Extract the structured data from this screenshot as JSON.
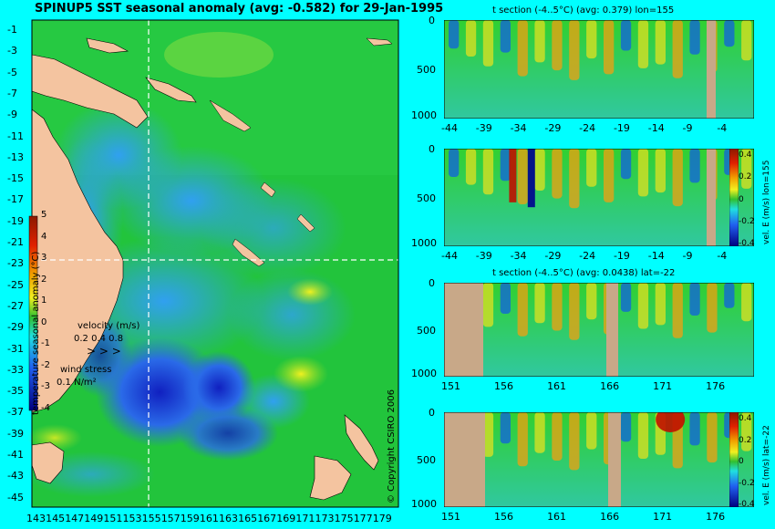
{
  "map": {
    "title": "SPINUP5 SST seasonal anomaly (avg: -0.582) for 29-Jan-1995",
    "lat_ticks": [
      "-1",
      "-3",
      "-5",
      "-7",
      "-9",
      "-11",
      "-13",
      "-15",
      "-17",
      "-19",
      "-21",
      "-23",
      "-25",
      "-27",
      "-29",
      "-31",
      "-33",
      "-35",
      "-37",
      "-39",
      "-41",
      "-43",
      "-45"
    ],
    "lon_ticks": [
      "143",
      "145",
      "147",
      "149",
      "151",
      "153",
      "155",
      "157",
      "159",
      "161",
      "163",
      "165",
      "167",
      "169",
      "171",
      "173",
      "175",
      "177",
      "179"
    ],
    "colorbar_ticks": [
      "5",
      "4",
      "3",
      "2",
      "1",
      "0",
      "-1",
      "-2",
      "-3",
      "-4"
    ],
    "colorbar_label": "temperature seasonal anomaly (°C)",
    "velocity_label": "velocity (m/s)",
    "velocity_scale": "0.2 0.4 0.8",
    "wind_label": "wind stress",
    "wind_scale": "0.1 N/m²",
    "crosshair": {
      "lon": 155,
      "lat": -22
    },
    "colors": {
      "land": "#f4c4a0",
      "water_base": "#20c840",
      "anomaly_neg": "#1040e0",
      "anomaly_pos": "#f0e020",
      "cross": "#ffffff"
    }
  },
  "panels": [
    {
      "id": "p1",
      "title": "t section (-4..5°C) (avg: 0.379) lon=155",
      "y_ticks": [
        "0",
        "500",
        "1000"
      ],
      "x_ticks": [
        "-44",
        "-39",
        "-34",
        "-29",
        "-24",
        "-19",
        "-14",
        "-9",
        "-4"
      ],
      "side_label": "",
      "cbar_ticks": []
    },
    {
      "id": "p2",
      "title": "",
      "y_ticks": [
        "0",
        "500",
        "1000"
      ],
      "x_ticks": [
        "-44",
        "-39",
        "-34",
        "-29",
        "-24",
        "-19",
        "-14",
        "-9",
        "-4"
      ],
      "side_label": "vel. E (m/s) lon=155",
      "cbar_ticks": [
        "0.4",
        "0.2",
        "0",
        "-0.2",
        "-0.4"
      ]
    },
    {
      "id": "p3",
      "title": "t section (-4..5°C) (avg: 0.0438) lat=-22",
      "y_ticks": [
        "0",
        "500",
        "1000"
      ],
      "x_ticks": [
        "151",
        "156",
        "161",
        "166",
        "171",
        "176"
      ],
      "side_label": "",
      "cbar_ticks": []
    },
    {
      "id": "p4",
      "title": "",
      "y_ticks": [
        "0",
        "500",
        "1000"
      ],
      "x_ticks": [
        "151",
        "156",
        "161",
        "166",
        "171",
        "176"
      ],
      "side_label": "vel. E (m/s) lat=-22",
      "cbar_ticks": [
        "0.4",
        "0.2",
        "0",
        "-0.2",
        "-0.4"
      ]
    }
  ],
  "copyright": "© Copyright CSIRO 2006"
}
